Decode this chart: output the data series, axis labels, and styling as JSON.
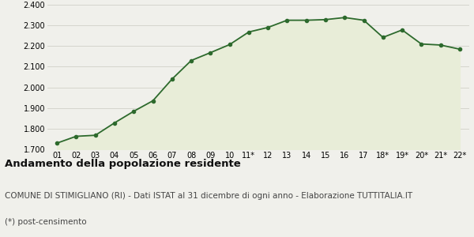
{
  "x_labels": [
    "01",
    "02",
    "03",
    "04",
    "05",
    "06",
    "07",
    "08",
    "09",
    "10",
    "11*",
    "12",
    "13",
    "14",
    "15",
    "16",
    "17",
    "18*",
    "19*",
    "20*",
    "21*",
    "22*"
  ],
  "y_values": [
    1730,
    1763,
    1768,
    1828,
    1884,
    1935,
    2040,
    2130,
    2168,
    2207,
    2268,
    2290,
    2325,
    2325,
    2328,
    2338,
    2325,
    2242,
    2278,
    2210,
    2205,
    2185
  ],
  "line_color": "#2d6a2d",
  "fill_color": "#e8edd8",
  "marker_color": "#2d6a2d",
  "bg_color": "#f0f0eb",
  "plot_bg_color": "#f0f0eb",
  "ylim": [
    1700,
    2400
  ],
  "yticks": [
    1700,
    1800,
    1900,
    2000,
    2100,
    2200,
    2300,
    2400
  ],
  "title": "Andamento della popolazione residente",
  "subtitle": "COMUNE DI STIMIGLIANO (RI) - Dati ISTAT al 31 dicembre di ogni anno - Elaborazione TUTTITALIA.IT",
  "footnote": "(*) post-censimento",
  "title_fontsize": 9.5,
  "subtitle_fontsize": 7.5,
  "footnote_fontsize": 7.5,
  "tick_fontsize": 7,
  "grid_color": "#d0d0c8"
}
